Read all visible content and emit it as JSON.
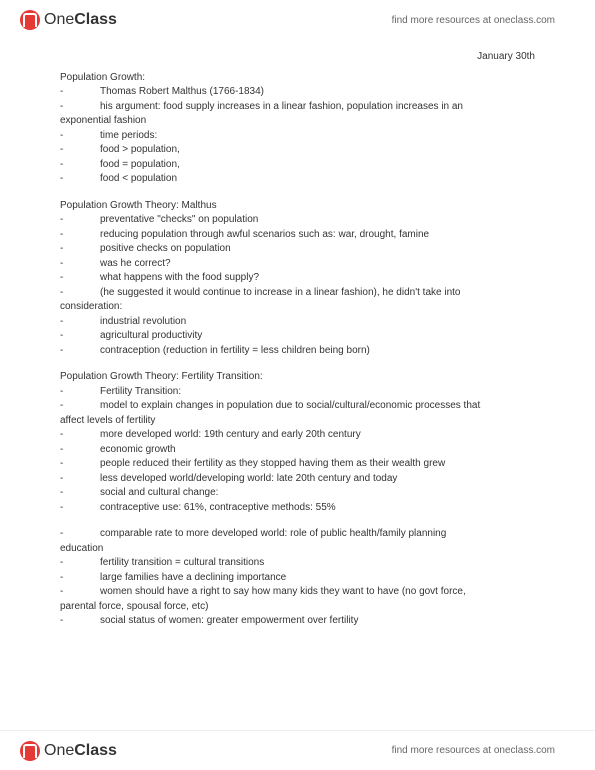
{
  "brand": {
    "name_plain": "One",
    "name_bold": "Class",
    "tagline": "find more resources at oneclass.com"
  },
  "date": "January 30th",
  "sections": [
    {
      "title": "Population Growth:",
      "items": [
        {
          "indent": 1,
          "text": "Thomas Robert Malthus (1766-1834)"
        },
        {
          "indent": 1,
          "text": "his argument: food supply increases in a linear fashion, population increases in an",
          "cont": "exponential fashion"
        },
        {
          "indent": 1,
          "text": "time periods:"
        },
        {
          "indent": 1,
          "text": "food > population,"
        },
        {
          "indent": 1,
          "text": "food = population,"
        },
        {
          "indent": 1,
          "text": "food < population"
        }
      ]
    },
    {
      "title": "Population Growth Theory: Malthus",
      "items": [
        {
          "indent": 1,
          "text": "preventative \"checks\" on population"
        },
        {
          "indent": 1,
          "text": "reducing population through awful scenarios such as: war, drought, famine"
        },
        {
          "indent": 1,
          "text": "positive checks on population"
        },
        {
          "indent": 1,
          "text": "was he correct?"
        },
        {
          "indent": 1,
          "text": "what happens with the food supply?"
        },
        {
          "indent": 1,
          "text": "(he suggested it would continue to increase in a linear fashion), he didn't take into",
          "cont": "consideration:"
        },
        {
          "indent": 1,
          "text": "industrial revolution"
        },
        {
          "indent": 1,
          "text": "agricultural productivity"
        },
        {
          "indent": 1,
          "text": "contraception (reduction in fertility = less children being born)"
        }
      ]
    },
    {
      "title": "Population Growth Theory: Fertility Transition:",
      "items": [
        {
          "indent": 1,
          "text": "Fertility Transition:"
        },
        {
          "indent": 1,
          "text": "model to explain changes in population due to social/cultural/economic processes that",
          "cont": "affect levels of fertility"
        },
        {
          "indent": 1,
          "text": "more developed world: 19th century and early 20th century"
        },
        {
          "indent": 1,
          "text": "economic growth"
        },
        {
          "indent": 1,
          "text": "people reduced their fertility as they stopped having them as their wealth grew"
        },
        {
          "indent": 1,
          "text": "less developed world/developing world: late 20th century and today"
        },
        {
          "indent": 1,
          "text": "social and cultural change:"
        },
        {
          "indent": 1,
          "text": "contraceptive use: 61%, contraceptive methods: 55%"
        }
      ]
    },
    {
      "title": "",
      "items": [
        {
          "indent": 1,
          "text": "comparable rate to more developed world: role of public health/family planning",
          "cont": "education"
        },
        {
          "indent": 1,
          "text": "fertility transition = cultural transitions"
        },
        {
          "indent": 1,
          "text": "large families have a declining importance"
        },
        {
          "indent": 1,
          "text": "women should have a right to say how many kids they want to have (no govt force,",
          "cont": "parental force, spousal force, etc)"
        },
        {
          "indent": 1,
          "text": "social status of women: greater empowerment over fertility"
        }
      ]
    }
  ]
}
